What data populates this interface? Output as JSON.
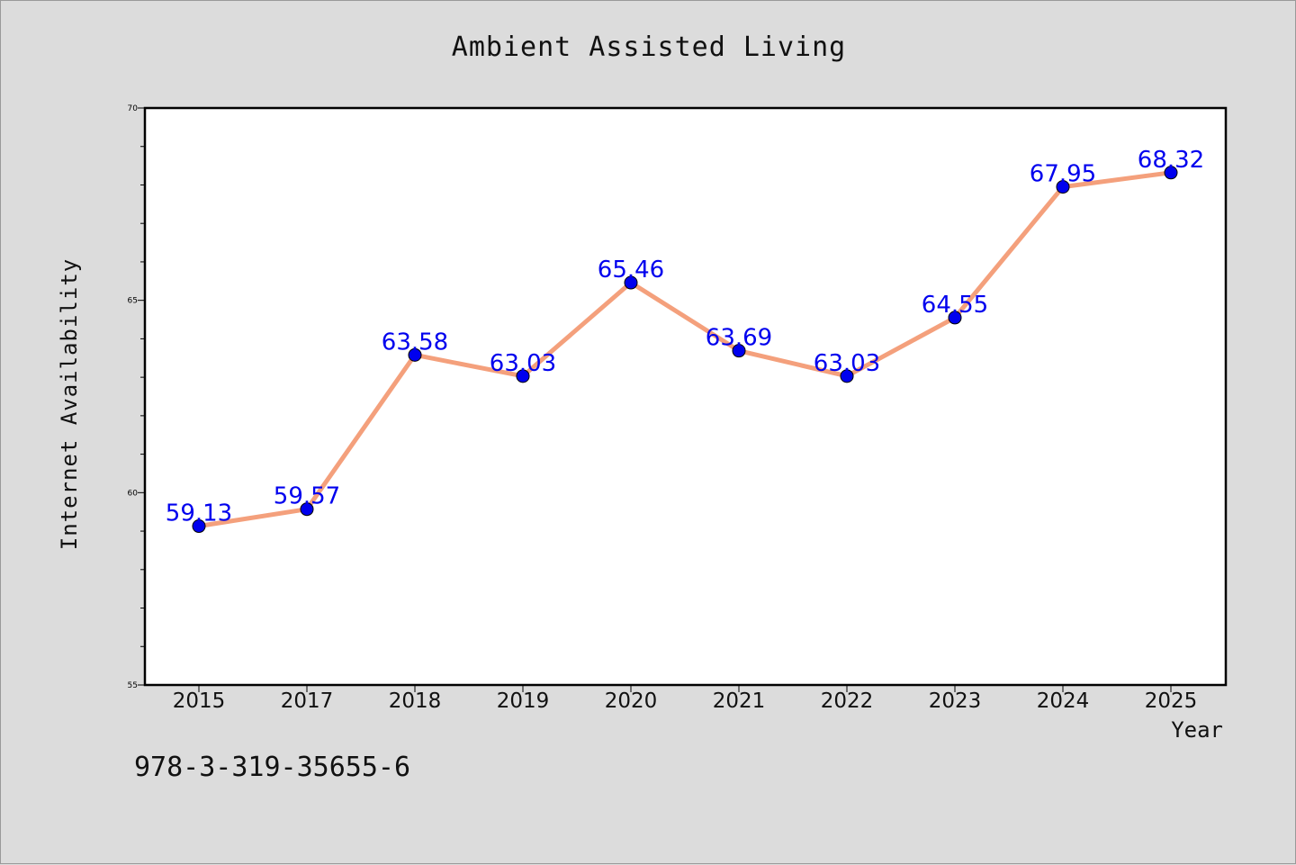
{
  "chart_data": {
    "type": "line",
    "title": "Ambient Assisted Living",
    "xlabel": "Year",
    "ylabel": "Internet Availability",
    "categories": [
      "2015",
      "2017",
      "2018",
      "2019",
      "2020",
      "2021",
      "2022",
      "2023",
      "2024",
      "2025"
    ],
    "series": [
      {
        "values": [
          59.13,
          59.57,
          63.58,
          63.03,
          65.46,
          63.69,
          63.03,
          64.55,
          67.95,
          68.32
        ],
        "line_color": "#f4a07c",
        "marker_color": "#0000ee"
      }
    ],
    "data_labels": [
      "59.13",
      "59.57",
      "63.58",
      "63.03",
      "65.46",
      "63.69",
      "63.03",
      "64.55",
      "67.95",
      "68.32"
    ],
    "data_label_color": "#0000ee",
    "ylim": [
      55,
      70
    ],
    "yticks": [
      "55",
      "60",
      "65",
      "70"
    ],
    "grid": false,
    "legend": "none"
  },
  "footer": {
    "isbn": "978-3-319-35655-6"
  }
}
